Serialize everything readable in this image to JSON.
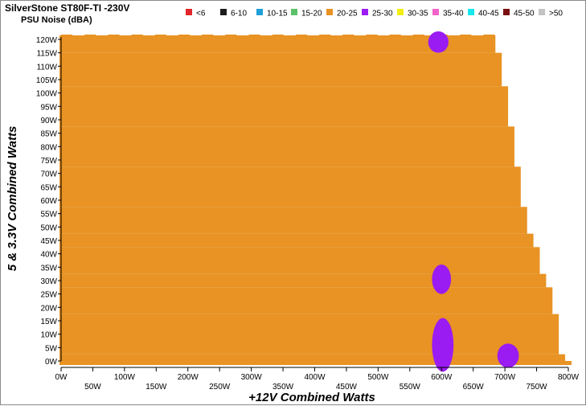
{
  "chart_data": {
    "type": "heatmap",
    "title": "SilverStone ST80F-TI -230V",
    "subtitle": "PSU Noise (dBA)",
    "xlabel": "+12V Combined Watts",
    "ylabel": "5 & 3.3V Combined Watts",
    "xlim": [
      0,
      800
    ],
    "ylim": [
      0,
      120
    ],
    "x_ticks": [
      "0W",
      "50W",
      "100W",
      "150W",
      "200W",
      "250W",
      "300W",
      "350W",
      "400W",
      "450W",
      "500W",
      "550W",
      "600W",
      "650W",
      "700W",
      "750W",
      "800W"
    ],
    "y_ticks": [
      "0W",
      "5W",
      "10W",
      "15W",
      "20W",
      "25W",
      "30W",
      "35W",
      "40W",
      "45W",
      "50W",
      "55W",
      "60W",
      "65W",
      "70W",
      "75W",
      "80W",
      "85W",
      "90W",
      "95W",
      "100W",
      "105W",
      "110W",
      "115W",
      "120W"
    ],
    "legend": [
      {
        "label": "<6",
        "color": "#e0262a"
      },
      {
        "label": "6-10",
        "color": "#1c1c1c"
      },
      {
        "label": "10-15",
        "color": "#1f9fd8"
      },
      {
        "label": "15-20",
        "color": "#5cc26a"
      },
      {
        "label": "20-25",
        "color": "#e89324"
      },
      {
        "label": "25-30",
        "color": "#9a1cf2"
      },
      {
        "label": "30-35",
        "color": "#f2ee16"
      },
      {
        "label": "35-40",
        "color": "#f064c8"
      },
      {
        "label": "40-45",
        "color": "#16e8ee"
      },
      {
        "label": "45-50",
        "color": "#7a0f0f"
      },
      {
        "label": ">50",
        "color": "#c4c4c4"
      }
    ],
    "max_12v_load_by_minor_load": [
      {
        "minor": 0,
        "max_12v": 805
      },
      {
        "minor": 2.5,
        "max_12v": 795
      },
      {
        "minor": 17.5,
        "max_12v": 785
      },
      {
        "minor": 27.5,
        "max_12v": 775
      },
      {
        "minor": 32.5,
        "max_12v": 765
      },
      {
        "minor": 42.5,
        "max_12v": 755
      },
      {
        "minor": 47.5,
        "max_12v": 745
      },
      {
        "minor": 57.5,
        "max_12v": 735
      },
      {
        "minor": 72.5,
        "max_12v": 725
      },
      {
        "minor": 87.5,
        "max_12v": 715
      },
      {
        "minor": 102.5,
        "max_12v": 705
      },
      {
        "minor": 115,
        "max_12v": 695
      },
      {
        "minor": 121.5,
        "max_12v": 685
      }
    ],
    "base_band": "20-25",
    "regions": [
      {
        "band": "25-30",
        "x_center": 595,
        "y_center": 119,
        "x_half": 16,
        "y_half": 4
      },
      {
        "band": "25-30",
        "x_center": 600,
        "y_center": 30.5,
        "x_half": 15,
        "y_half": 5.5
      },
      {
        "band": "25-30",
        "x_center": 602,
        "y_center": 6,
        "x_half": 17,
        "y_half": 10
      },
      {
        "band": "25-30",
        "x_center": 705,
        "y_center": 2,
        "x_half": 17,
        "y_half": 4.5
      }
    ]
  }
}
